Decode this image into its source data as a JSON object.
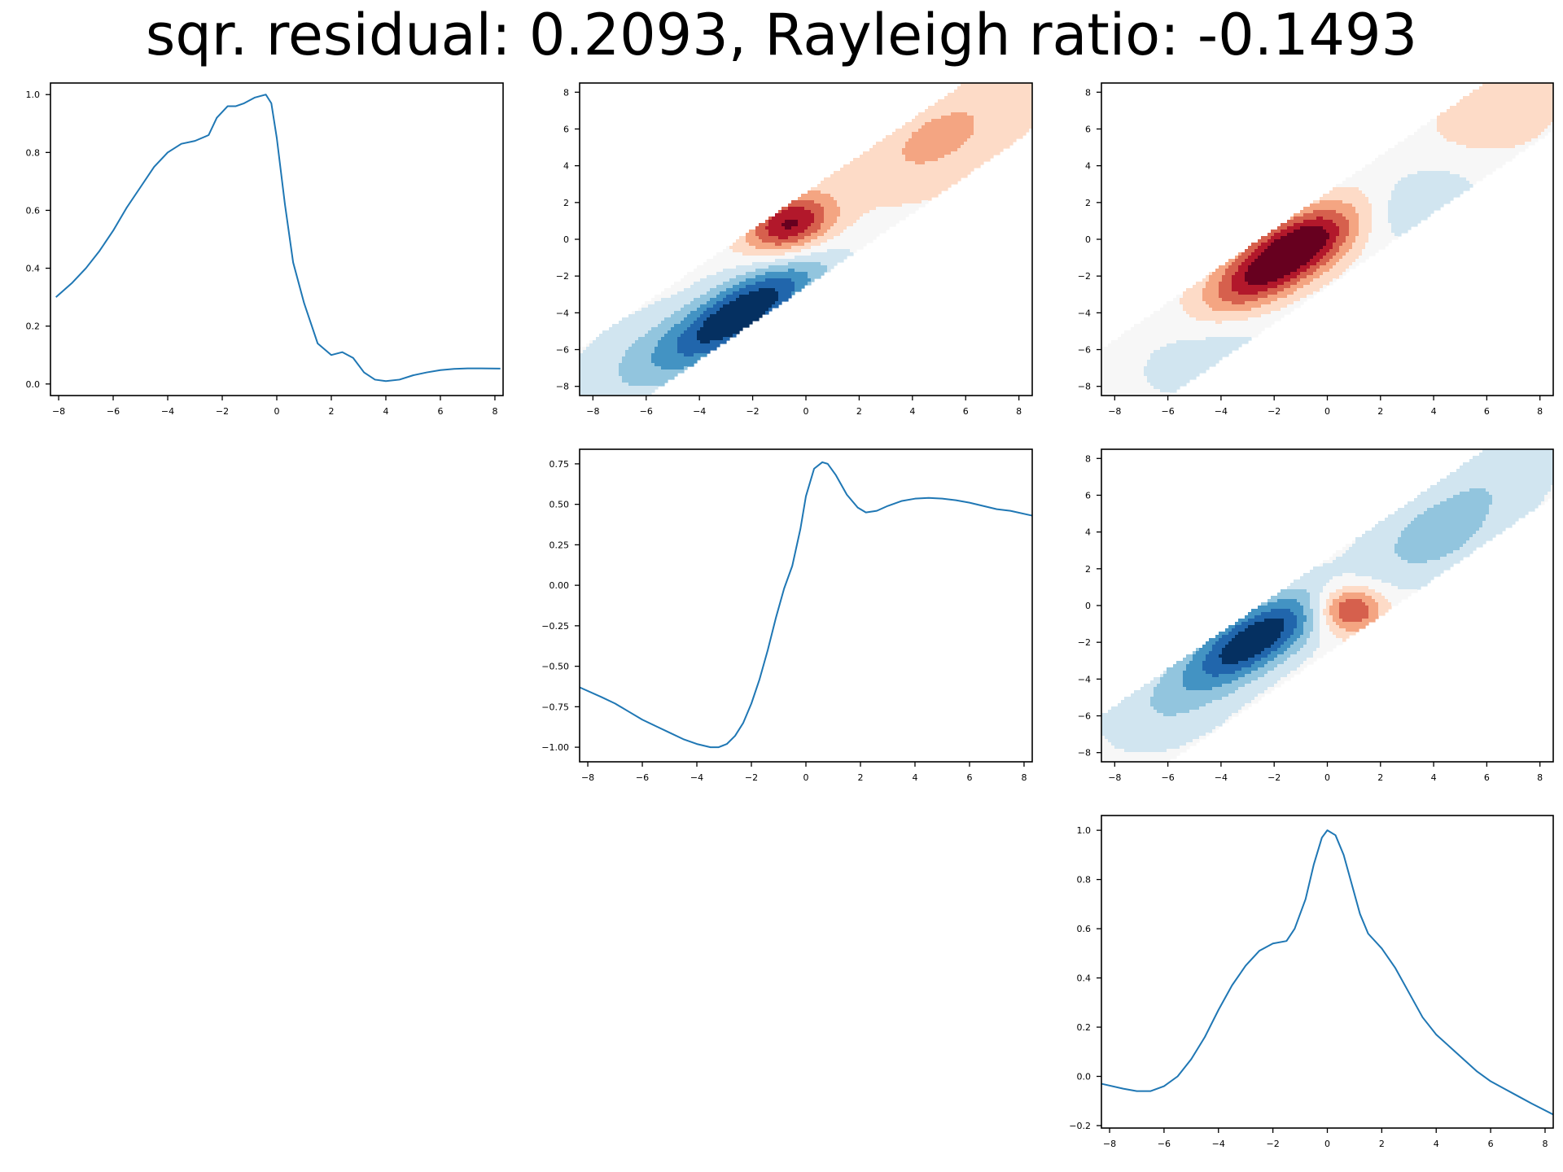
{
  "title": "sqr. residual: 0.2093, Rayleigh ratio: -0.1493",
  "colors": {
    "line": "#1f77b4",
    "contour_scale": [
      "#053061",
      "#2166ac",
      "#4393c3",
      "#92c5de",
      "#d1e5f0",
      "#f7f7f7",
      "#fddbc7",
      "#f4a582",
      "#d6604d",
      "#b2182b",
      "#67001f"
    ]
  },
  "chart_data": [
    {
      "id": "line-1",
      "type": "line",
      "grid": false,
      "xlim": [
        -8.3,
        8.3
      ],
      "ylim": [
        -0.04,
        1.04
      ],
      "xticks": [
        -8,
        -6,
        -4,
        -2,
        0,
        2,
        4,
        6,
        8
      ],
      "yticks": [
        0.0,
        0.2,
        0.4,
        0.6,
        0.8,
        1.0
      ],
      "ytick_labels": [
        "0.0",
        "0.2",
        "0.4",
        "0.6",
        "0.8",
        "1.0"
      ],
      "x": [
        -8.1,
        -7.5,
        -7,
        -6.5,
        -6,
        -5.5,
        -5,
        -4.5,
        -4,
        -3.5,
        -3,
        -2.5,
        -2.2,
        -1.8,
        -1.5,
        -1.2,
        -0.8,
        -0.4,
        -0.2,
        0,
        0.3,
        0.6,
        1,
        1.5,
        2,
        2.4,
        2.8,
        3.2,
        3.6,
        4,
        4.5,
        5,
        5.5,
        6,
        6.5,
        7,
        7.5,
        8.2
      ],
      "y": [
        0.3,
        0.35,
        0.4,
        0.46,
        0.53,
        0.61,
        0.68,
        0.75,
        0.8,
        0.83,
        0.84,
        0.86,
        0.92,
        0.96,
        0.96,
        0.97,
        0.99,
        1.0,
        0.97,
        0.85,
        0.62,
        0.42,
        0.28,
        0.14,
        0.1,
        0.11,
        0.09,
        0.04,
        0.015,
        0.01,
        0.015,
        0.03,
        0.04,
        0.048,
        0.052,
        0.054,
        0.054,
        0.053
      ]
    },
    {
      "id": "contour-1",
      "type": "heatmap",
      "grid": false,
      "xlim": [
        -8.5,
        8.5
      ],
      "ylim": [
        -8.5,
        8.5
      ],
      "xticks": [
        -8,
        -6,
        -4,
        -2,
        0,
        2,
        4,
        6,
        8
      ],
      "yticks": [
        -8,
        -6,
        -4,
        -2,
        0,
        2,
        4,
        6,
        8
      ],
      "band_halfwidth": 1.8,
      "blobs": [
        {
          "center": [
            -2.3,
            -3.9
          ],
          "amplitude": -1.0,
          "sigma": [
            2.6,
            1.0
          ]
        },
        {
          "center": [
            -0.6,
            0.8
          ],
          "amplitude": 0.85,
          "sigma": [
            1.3,
            1.0
          ]
        },
        {
          "center": [
            5.0,
            5.5
          ],
          "amplitude": 0.32,
          "sigma": [
            3.0,
            1.6
          ]
        },
        {
          "center": [
            -6.0,
            -6.5
          ],
          "amplitude": -0.25,
          "sigma": [
            2.5,
            1.5
          ]
        }
      ]
    },
    {
      "id": "contour-2",
      "type": "heatmap",
      "grid": false,
      "xlim": [
        -8.5,
        8.5
      ],
      "ylim": [
        -8.5,
        8.5
      ],
      "xticks": [
        -8,
        -6,
        -4,
        -2,
        0,
        2,
        4,
        6,
        8
      ],
      "yticks": [
        -8,
        -6,
        -4,
        -2,
        0,
        2,
        4,
        6,
        8
      ],
      "band_halfwidth": 1.8,
      "blobs": [
        {
          "center": [
            -1.0,
            -0.3
          ],
          "amplitude": 1.0,
          "sigma": [
            1.9,
            1.0
          ]
        },
        {
          "center": [
            -3.0,
            -2.5
          ],
          "amplitude": 0.55,
          "sigma": [
            1.8,
            1.0
          ]
        },
        {
          "center": [
            3.5,
            2.0
          ],
          "amplitude": -0.25,
          "sigma": [
            1.8,
            1.2
          ]
        },
        {
          "center": [
            -4.5,
            -6.0
          ],
          "amplitude": -0.18,
          "sigma": [
            2.5,
            1.5
          ]
        },
        {
          "center": [
            6.5,
            7.0
          ],
          "amplitude": 0.22,
          "sigma": [
            2.2,
            1.5
          ]
        }
      ]
    },
    {
      "id": "line-2",
      "type": "line",
      "grid": false,
      "xlim": [
        -8.3,
        8.3
      ],
      "ylim": [
        -1.09,
        0.84
      ],
      "xticks": [
        -8,
        -6,
        -4,
        -2,
        0,
        2,
        4,
        6,
        8
      ],
      "yticks": [
        -1.0,
        -0.75,
        -0.5,
        -0.25,
        0.0,
        0.25,
        0.5,
        0.75
      ],
      "ytick_labels": [
        "−1.00",
        "−0.75",
        "−0.50",
        "−0.25",
        "0.00",
        "0.25",
        "0.50",
        "0.75"
      ],
      "x": [
        -8.3,
        -7.5,
        -7,
        -6.5,
        -6,
        -5.5,
        -5,
        -4.5,
        -4,
        -3.5,
        -3.2,
        -2.9,
        -2.6,
        -2.3,
        -2,
        -1.7,
        -1.4,
        -1.1,
        -0.8,
        -0.5,
        -0.2,
        0,
        0.3,
        0.6,
        0.8,
        1.1,
        1.5,
        1.9,
        2.2,
        2.6,
        3,
        3.5,
        4,
        4.5,
        5,
        5.5,
        6,
        6.5,
        7,
        7.5,
        8.3
      ],
      "y": [
        -0.63,
        -0.69,
        -0.73,
        -0.78,
        -0.83,
        -0.87,
        -0.91,
        -0.95,
        -0.98,
        -1.0,
        -1.0,
        -0.98,
        -0.93,
        -0.85,
        -0.73,
        -0.58,
        -0.4,
        -0.2,
        -0.02,
        0.12,
        0.35,
        0.55,
        0.72,
        0.76,
        0.75,
        0.68,
        0.56,
        0.48,
        0.45,
        0.46,
        0.49,
        0.52,
        0.535,
        0.54,
        0.535,
        0.525,
        0.51,
        0.49,
        0.47,
        0.46,
        0.43
      ]
    },
    {
      "id": "contour-3",
      "type": "heatmap",
      "grid": false,
      "xlim": [
        -8.5,
        8.5
      ],
      "ylim": [
        -8.5,
        8.5
      ],
      "xticks": [
        -8,
        -6,
        -4,
        -2,
        0,
        2,
        4,
        6,
        8
      ],
      "yticks": [
        -8,
        -6,
        -4,
        -2,
        0,
        2,
        4,
        6,
        8
      ],
      "band_halfwidth": 1.8,
      "blobs": [
        {
          "center": [
            -2.7,
            -1.8
          ],
          "amplitude": -1.0,
          "sigma": [
            2.3,
            1.0
          ]
        },
        {
          "center": [
            0.8,
            -0.2
          ],
          "amplitude": 0.75,
          "sigma": [
            0.9,
            0.9
          ]
        },
        {
          "center": [
            4.0,
            3.7
          ],
          "amplitude": -0.35,
          "sigma": [
            2.2,
            1.4
          ]
        },
        {
          "center": [
            6.5,
            7.2
          ],
          "amplitude": -0.18,
          "sigma": [
            2.2,
            1.5
          ]
        },
        {
          "center": [
            -6.0,
            -5.5
          ],
          "amplitude": -0.22,
          "sigma": [
            2.2,
            1.5
          ]
        }
      ]
    },
    {
      "id": "line-3",
      "type": "line",
      "grid": false,
      "xlim": [
        -8.3,
        8.3
      ],
      "ylim": [
        -0.21,
        1.06
      ],
      "xticks": [
        -8,
        -6,
        -4,
        -2,
        0,
        2,
        4,
        6,
        8
      ],
      "yticks": [
        -0.2,
        0.0,
        0.2,
        0.4,
        0.6,
        0.8,
        1.0
      ],
      "ytick_labels": [
        "−0.2",
        "0.0",
        "0.2",
        "0.4",
        "0.6",
        "0.8",
        "1.0"
      ],
      "x": [
        -8.3,
        -7.5,
        -7,
        -6.5,
        -6,
        -5.5,
        -5,
        -4.5,
        -4,
        -3.5,
        -3,
        -2.5,
        -2,
        -1.5,
        -1.2,
        -0.8,
        -0.5,
        -0.2,
        0,
        0.3,
        0.6,
        0.9,
        1.2,
        1.5,
        2,
        2.5,
        3,
        3.5,
        4,
        4.5,
        5,
        5.5,
        6,
        6.5,
        7,
        7.5,
        8.3
      ],
      "y": [
        -0.03,
        -0.05,
        -0.06,
        -0.06,
        -0.04,
        0.0,
        0.07,
        0.16,
        0.27,
        0.37,
        0.45,
        0.51,
        0.54,
        0.55,
        0.6,
        0.72,
        0.86,
        0.97,
        1.0,
        0.98,
        0.9,
        0.78,
        0.66,
        0.58,
        0.52,
        0.44,
        0.34,
        0.24,
        0.17,
        0.12,
        0.07,
        0.02,
        -0.02,
        -0.05,
        -0.08,
        -0.11,
        -0.155
      ]
    }
  ]
}
